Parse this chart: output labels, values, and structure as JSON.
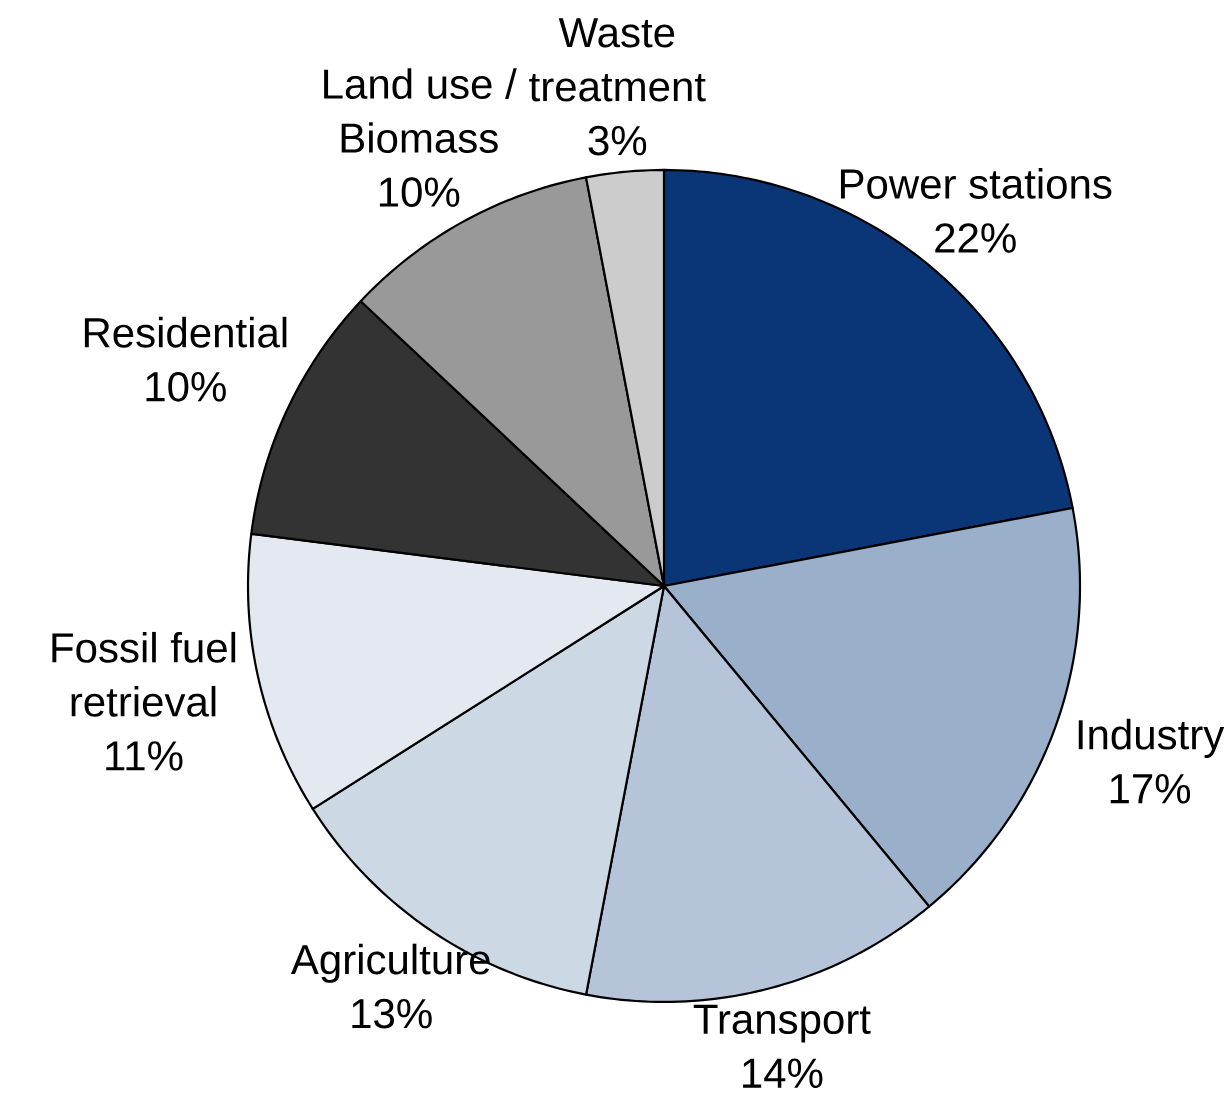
{
  "chart_data": {
    "type": "pie",
    "categories": [
      "Power stations",
      "Industry",
      "Transport",
      "Agriculture",
      "Fossil fuel retrieval",
      "Residential",
      "Land use / Biomass",
      "Waste treatment"
    ],
    "values": [
      22,
      17,
      14,
      13,
      11,
      10,
      10,
      3
    ],
    "value_labels": [
      "22%",
      "17%",
      "14%",
      "13%",
      "11%",
      "10%",
      "10%",
      "3%"
    ],
    "colors": [
      "#0a3577",
      "#9aafca",
      "#b5c4d9",
      "#cdd8e5",
      "#e4e9f1",
      "#333333",
      "#999999",
      "#cccccc"
    ]
  }
}
